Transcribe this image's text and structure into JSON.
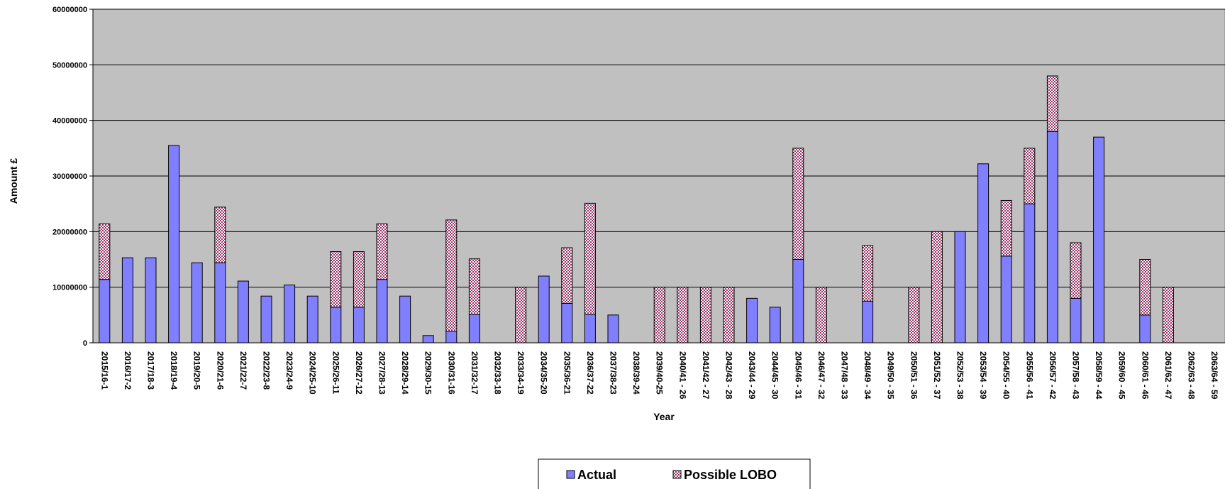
{
  "chart_data": {
    "type": "bar",
    "stacked": true,
    "title": "",
    "xlabel": "Year",
    "ylabel": "Amount £",
    "ylim": [
      0,
      60000000
    ],
    "yticks": [
      "0",
      "10000000",
      "20000000",
      "30000000",
      "40000000",
      "50000000",
      "60000000"
    ],
    "grid": true,
    "legend_position": "bottom",
    "colors": {
      "actual": "#8080ff",
      "lobo_pattern": "#993366",
      "plot_background": "#c0c0c0"
    },
    "categories": [
      "2015/16-1",
      "2016/17-2",
      "2017/18-3",
      "2018/19-4",
      "2019/20-5",
      "2020/21-6",
      "2021/22-7",
      "2022/23-8",
      "2023/24-9",
      "2024/25-10",
      "2025/26-11",
      "2026/27-12",
      "2027/28-13",
      "2028/29-14",
      "2029/30-15",
      "2030/31-16",
      "2031/32-17",
      "2032/33-18",
      "2033/34-19",
      "2034/35-20",
      "2035/36-21",
      "2036/37-22",
      "2037/38-23",
      "2038/39-24",
      "2039/40-25",
      "2040/41 - 26",
      "2041/42 - 27",
      "2042/43 - 28",
      "2043/44 - 29",
      "2044/45 - 30",
      "2045/46 - 31",
      "2046/47 - 32",
      "2047/48 - 33",
      "2048/49 - 34",
      "2049/50 - 35",
      "2050/51 - 36",
      "2051/52 - 37",
      "2052/53 - 38",
      "2053/54 - 39",
      "2054/55 - 40",
      "2055/56 - 41",
      "2056/57 - 42",
      "2057/58 - 43",
      "2058/59 - 44",
      "2059/60 - 45",
      "2060/61 - 46",
      "2061/62 - 47",
      "2062/63 - 48",
      "2063/64 - 59"
    ],
    "series": [
      {
        "name": "Actual",
        "values": [
          11400000,
          15300000,
          15300000,
          35500000,
          14400000,
          14400000,
          11100000,
          8400000,
          10400000,
          8400000,
          6400000,
          6400000,
          11400000,
          8400000,
          1300000,
          2100000,
          5100000,
          0,
          0,
          12000000,
          7100000,
          5100000,
          5000000,
          0,
          0,
          0,
          0,
          0,
          8000000,
          6400000,
          15000000,
          0,
          0,
          7500000,
          0,
          0,
          0,
          20000000,
          32200000,
          15600000,
          25000000,
          38000000,
          8000000,
          37000000,
          0,
          5000000,
          0,
          0,
          0
        ]
      },
      {
        "name": "Possible LOBO",
        "values": [
          10000000,
          0,
          0,
          0,
          0,
          10000000,
          0,
          0,
          0,
          0,
          10000000,
          10000000,
          10000000,
          0,
          0,
          20000000,
          10000000,
          0,
          10000000,
          0,
          10000000,
          20000000,
          0,
          0,
          10000000,
          10000000,
          10000000,
          10000000,
          0,
          0,
          20000000,
          10000000,
          0,
          10000000,
          0,
          10000000,
          20000000,
          0,
          0,
          10000000,
          10000000,
          10000000,
          10000000,
          0,
          0,
          10000000,
          10000000,
          0,
          0
        ]
      }
    ]
  }
}
